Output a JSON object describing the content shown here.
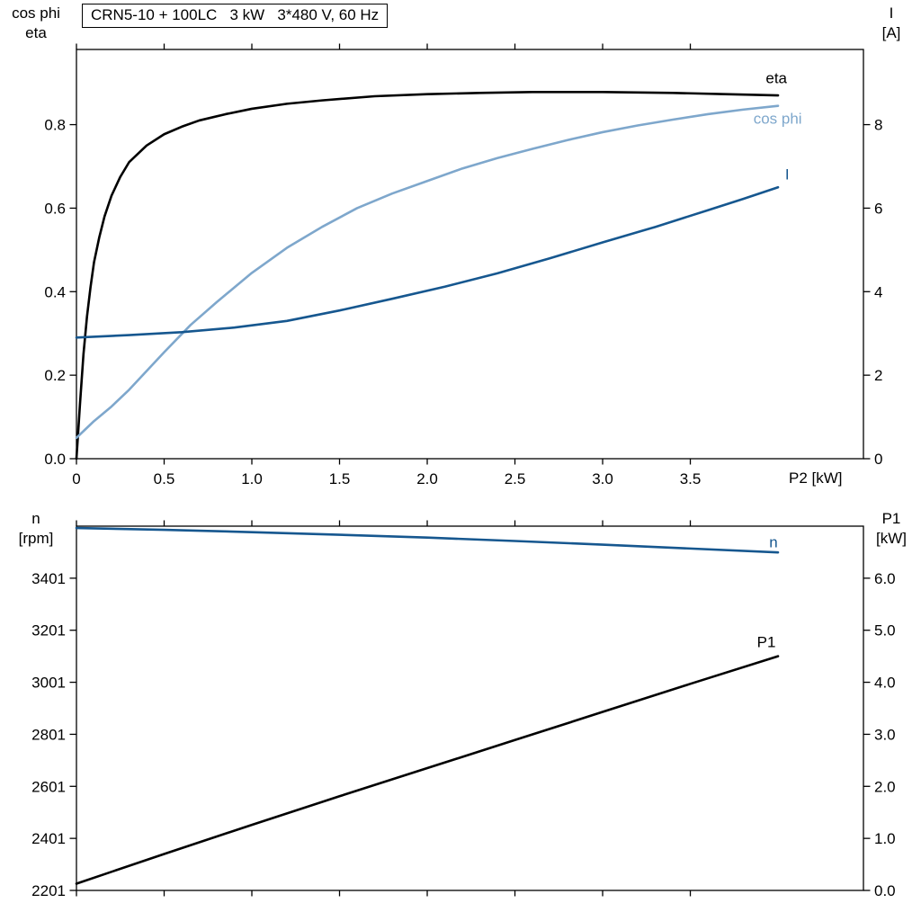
{
  "title_box": "CRN5-10 + 100LC   3 kW   3*480 V, 60 Hz",
  "colors": {
    "background": "#ffffff",
    "black": "#000000",
    "dark_blue": "#16578f",
    "light_blue": "#7ea7cc"
  },
  "chart_data": [
    {
      "type": "line",
      "title": "CRN5-10 + 100LC   3 kW   3*480 V, 60 Hz",
      "xlabel": "P2 [kW]",
      "left_axis_title": [
        "cos phi",
        "eta"
      ],
      "right_axis_title": [
        "I",
        "[A]"
      ],
      "xlim": [
        0,
        4.487
      ],
      "xticks": [
        "0",
        "0.5",
        "1.0",
        "1.5",
        "2.0",
        "2.5",
        "3.0",
        "3.5"
      ],
      "left_ylim": [
        0,
        0.98
      ],
      "left_yticks": [
        "0.0",
        "0.2",
        "0.4",
        "0.6",
        "0.8"
      ],
      "right_ylim": [
        0,
        9.8
      ],
      "right_yticks": [
        "0",
        "2",
        "4",
        "6",
        "8"
      ],
      "grid": false,
      "legend_position": "curve-end-labels",
      "series": [
        {
          "name": "eta",
          "axis": "left",
          "color": "black",
          "label": {
            "text": "eta",
            "x": 3.93,
            "y": 0.912
          },
          "x": [
            0,
            0.02,
            0.04,
            0.06,
            0.08,
            0.1,
            0.13,
            0.16,
            0.2,
            0.25,
            0.3,
            0.4,
            0.5,
            0.6,
            0.7,
            0.85,
            1.0,
            1.2,
            1.4,
            1.7,
            2.0,
            2.3,
            2.6,
            3.0,
            3.4,
            3.7,
            4.0
          ],
          "y": [
            0,
            0.13,
            0.25,
            0.34,
            0.41,
            0.47,
            0.53,
            0.58,
            0.63,
            0.675,
            0.71,
            0.75,
            0.777,
            0.795,
            0.81,
            0.825,
            0.838,
            0.85,
            0.858,
            0.868,
            0.873,
            0.876,
            0.878,
            0.878,
            0.876,
            0.873,
            0.87
          ]
        },
        {
          "name": "cos phi",
          "axis": "left",
          "color": "light_blue",
          "label": {
            "text": "cos phi",
            "x": 3.86,
            "y": 0.815
          },
          "x": [
            0,
            0.05,
            0.1,
            0.2,
            0.3,
            0.4,
            0.5,
            0.65,
            0.8,
            1.0,
            1.2,
            1.4,
            1.6,
            1.8,
            2.0,
            2.2,
            2.4,
            2.6,
            2.8,
            3.0,
            3.2,
            3.4,
            3.6,
            3.8,
            4.0
          ],
          "y": [
            0.05,
            0.07,
            0.09,
            0.125,
            0.165,
            0.21,
            0.255,
            0.32,
            0.375,
            0.445,
            0.505,
            0.555,
            0.6,
            0.635,
            0.665,
            0.695,
            0.72,
            0.742,
            0.763,
            0.782,
            0.798,
            0.812,
            0.825,
            0.836,
            0.845
          ]
        },
        {
          "name": "I",
          "axis": "right",
          "color": "dark_blue",
          "label": {
            "text": "I",
            "x": 4.04,
            "y": 6.82
          },
          "x": [
            0,
            0.3,
            0.6,
            0.9,
            1.2,
            1.5,
            1.8,
            2.1,
            2.4,
            2.7,
            3.0,
            3.3,
            3.6,
            3.8,
            4.0
          ],
          "y": [
            2.9,
            2.96,
            3.03,
            3.14,
            3.3,
            3.55,
            3.83,
            4.12,
            4.44,
            4.8,
            5.18,
            5.55,
            5.95,
            6.22,
            6.5
          ]
        }
      ]
    },
    {
      "type": "line",
      "title": "",
      "xlabel": "",
      "left_axis_title": [
        "n",
        "[rpm]"
      ],
      "right_axis_title": [
        "P1",
        "[kW]"
      ],
      "xlim": [
        0,
        4.487
      ],
      "xticks": [
        "0",
        "0.5",
        "1.0",
        "1.5",
        "2.0",
        "2.5",
        "3.0",
        "3.5"
      ],
      "left_ylim": [
        2201,
        3601
      ],
      "left_yticks": [
        "2201",
        "2401",
        "2601",
        "2801",
        "3001",
        "3201",
        "3401"
      ],
      "right_ylim": [
        0,
        7
      ],
      "right_yticks": [
        "0.0",
        "1.0",
        "2.0",
        "3.0",
        "4.0",
        "5.0",
        "6.0"
      ],
      "grid": false,
      "legend_position": "curve-end-labels",
      "series": [
        {
          "name": "n",
          "axis": "left",
          "color": "dark_blue",
          "label": {
            "text": "n",
            "x": 3.95,
            "y": 3541
          },
          "x": [
            0,
            0.5,
            1.0,
            1.5,
            2.0,
            2.5,
            3.0,
            3.5,
            4.0
          ],
          "y": [
            3594,
            3587,
            3578,
            3568,
            3557,
            3544,
            3530,
            3515,
            3500
          ]
        },
        {
          "name": "P1",
          "axis": "right",
          "color": "black",
          "label": {
            "text": "P1",
            "x": 3.88,
            "y": 4.78
          },
          "x": [
            0,
            0.5,
            1.0,
            1.5,
            2.0,
            2.5,
            3.0,
            3.5,
            4.0
          ],
          "y": [
            0.13,
            0.7,
            1.26,
            1.81,
            2.35,
            2.89,
            3.43,
            3.97,
            4.5
          ]
        }
      ]
    }
  ]
}
